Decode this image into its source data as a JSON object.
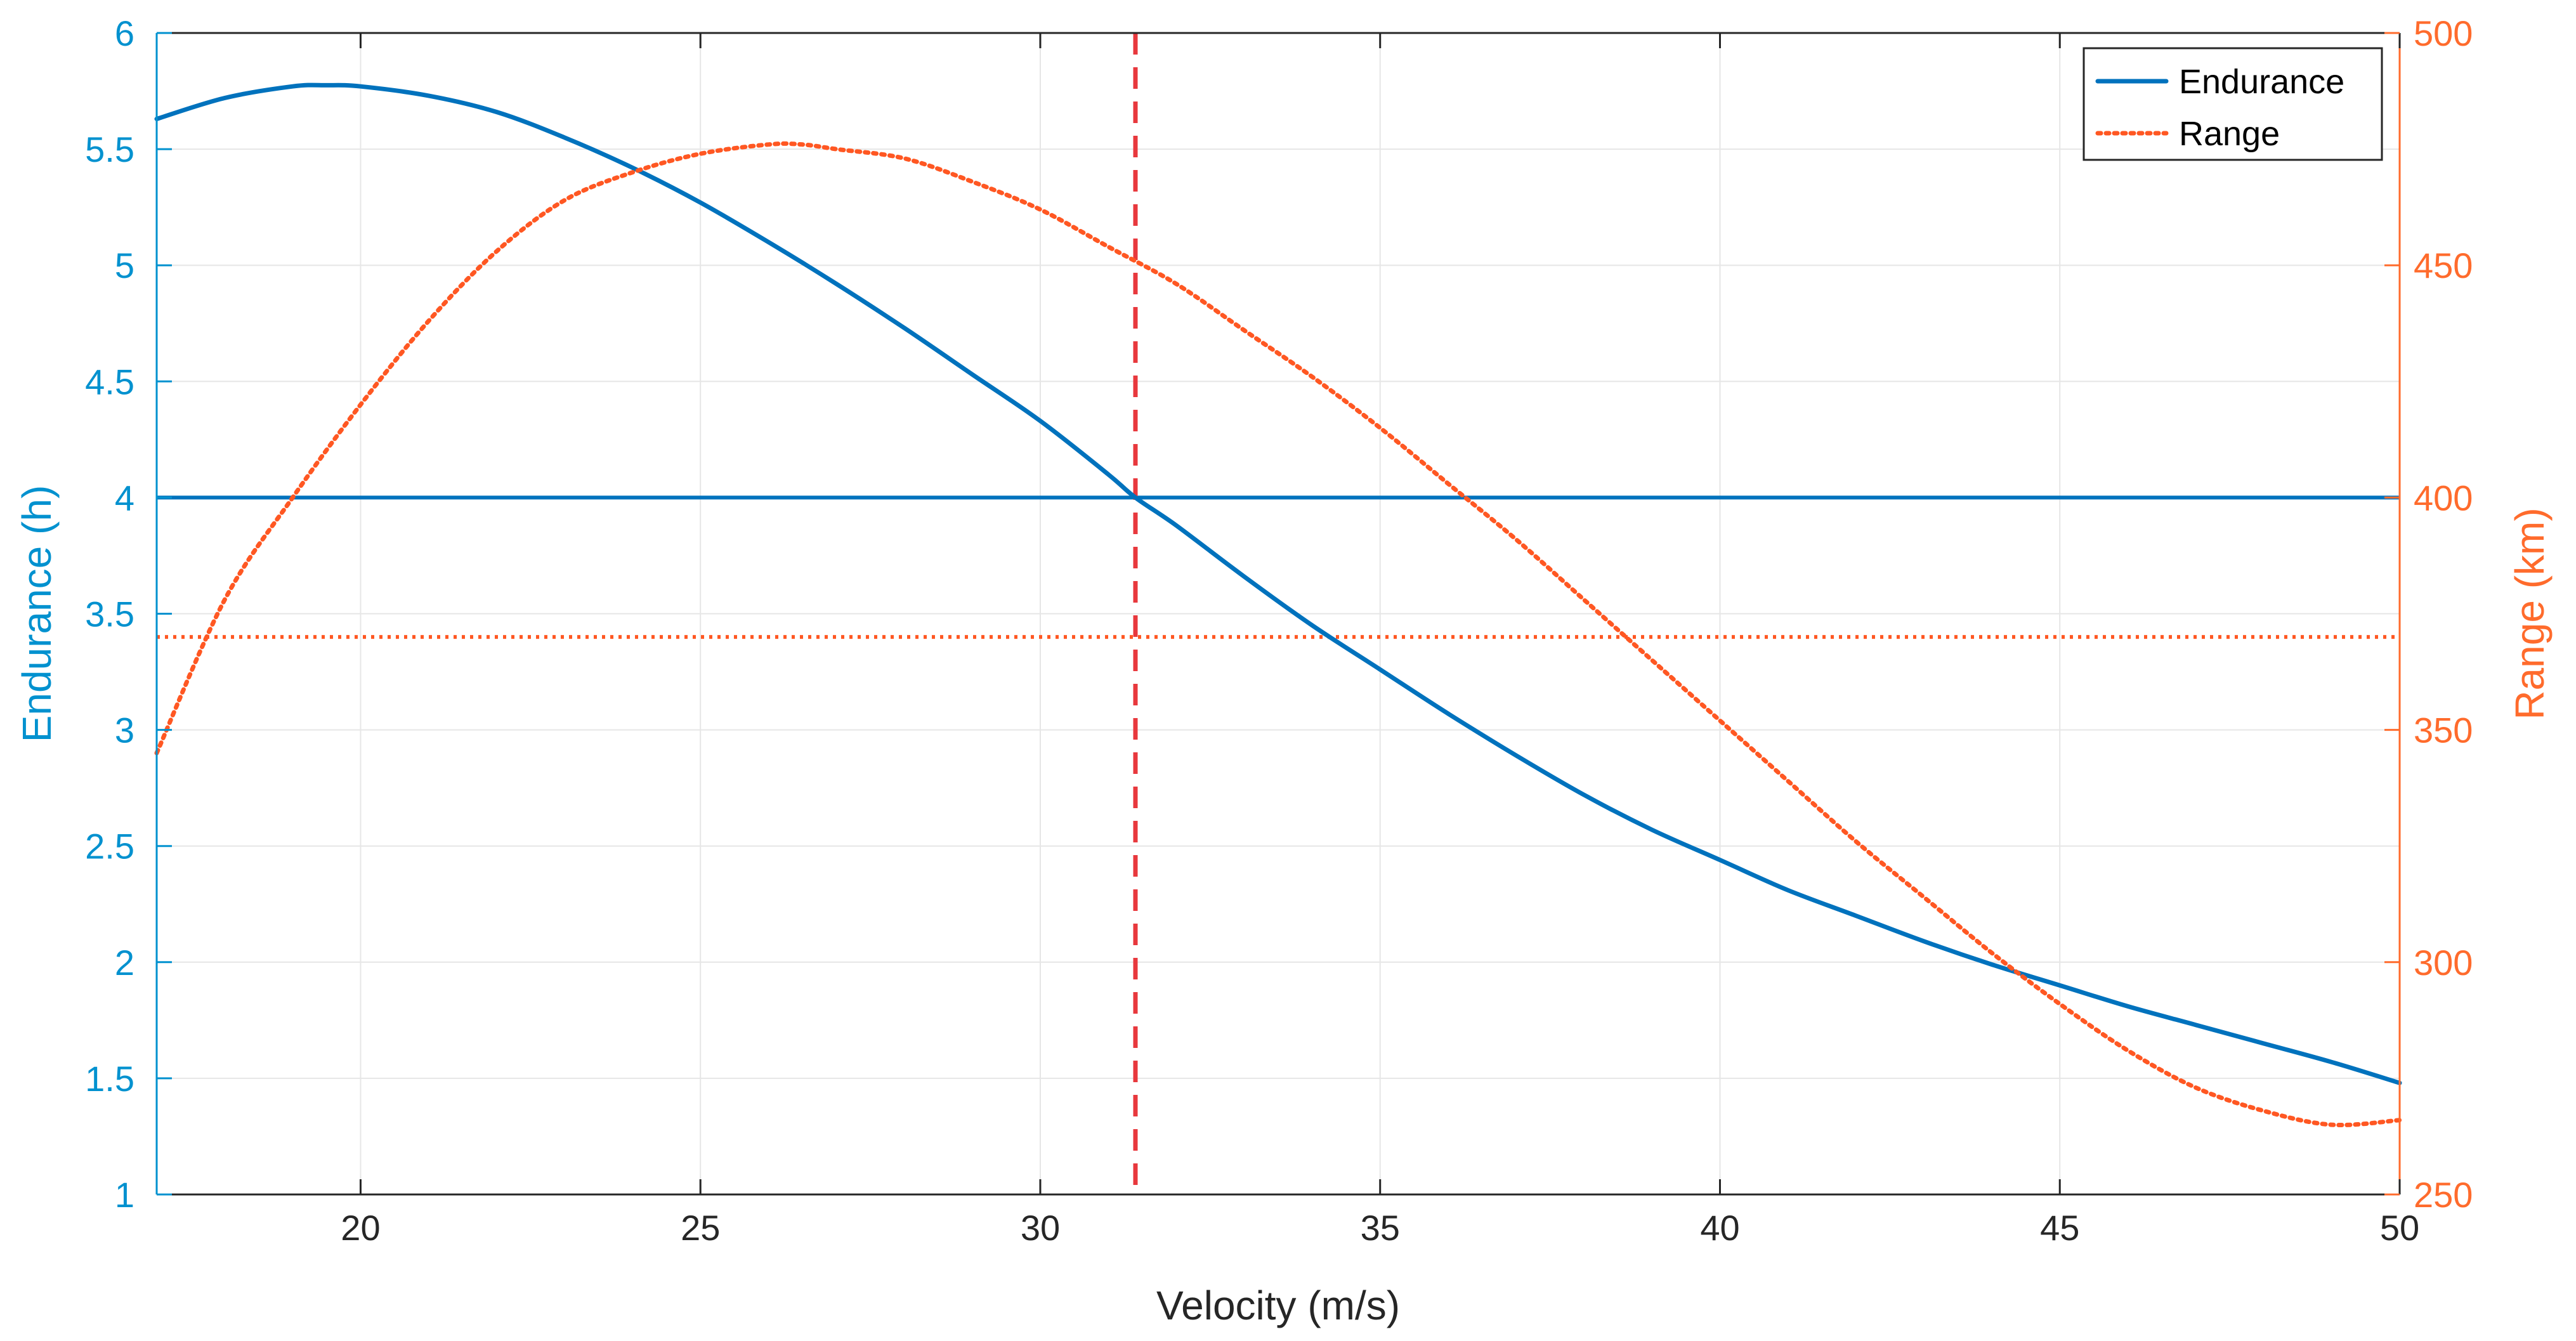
{
  "chart_data": {
    "type": "line",
    "xlabel": "Velocity (m/s)",
    "ylabel_left": "Endurance (h)",
    "ylabel_right": "Range (km)",
    "xlim": [
      17,
      50
    ],
    "ylim_left": [
      1,
      6
    ],
    "ylim_right": [
      250,
      500
    ],
    "xticks": [
      20,
      25,
      30,
      35,
      40,
      45,
      50
    ],
    "yticks_left": [
      1,
      1.5,
      2,
      2.5,
      3,
      3.5,
      4,
      4.5,
      5,
      5.5,
      6
    ],
    "yticks_right": [
      250,
      300,
      350,
      400,
      450,
      500
    ],
    "grid": true,
    "legend_position": "top-right",
    "colors": {
      "endurance": "#0072BD",
      "range": "#FF5722",
      "left_axis": "#0091CF",
      "right_axis": "#FF6B2C",
      "vline": "#E8383D"
    },
    "series": [
      {
        "name": "Endurance",
        "axis": "left",
        "style": "solid",
        "x": [
          17,
          18,
          19,
          19.5,
          20,
          21,
          22,
          23,
          24,
          25,
          26,
          27,
          28,
          29,
          30,
          31,
          31.4,
          32,
          33,
          34,
          35,
          36,
          37,
          38,
          39,
          40,
          41,
          42,
          43,
          44,
          45,
          46,
          47,
          48,
          49,
          50
        ],
        "values": [
          5.63,
          5.72,
          5.77,
          5.775,
          5.77,
          5.73,
          5.66,
          5.55,
          5.42,
          5.27,
          5.1,
          4.92,
          4.73,
          4.53,
          4.33,
          4.1,
          4.0,
          3.88,
          3.66,
          3.45,
          3.26,
          3.07,
          2.89,
          2.72,
          2.57,
          2.44,
          2.31,
          2.2,
          2.09,
          1.99,
          1.9,
          1.81,
          1.73,
          1.65,
          1.57,
          1.48
        ]
      },
      {
        "name": "Range",
        "axis": "right",
        "style": "dotted",
        "x": [
          17,
          18,
          19,
          20,
          21,
          22,
          23,
          24,
          25,
          26,
          26.5,
          27,
          28,
          29,
          30,
          31,
          32,
          33,
          34,
          35,
          36,
          37,
          38,
          39,
          40,
          41,
          42,
          43,
          44,
          45,
          46,
          47,
          48,
          49,
          50
        ],
        "values": [
          345,
          378,
          400,
          420,
          438,
          453,
          464,
          470,
          474,
          476,
          476,
          475,
          473,
          468,
          462,
          454,
          446,
          436,
          426,
          415,
          403,
          391,
          378,
          365,
          352,
          339,
          326,
          314,
          302,
          291,
          281,
          273,
          268,
          265,
          266
        ]
      }
    ],
    "reference_lines": [
      {
        "orientation": "horizontal",
        "axis": "left",
        "value": 4,
        "style": "solid",
        "color": "#0072BD"
      },
      {
        "orientation": "horizontal",
        "axis": "right",
        "value": 370,
        "style": "dotted",
        "color": "#FF5722"
      },
      {
        "orientation": "vertical",
        "value": 31.4,
        "style": "dashed",
        "color": "#E8383D"
      }
    ]
  }
}
